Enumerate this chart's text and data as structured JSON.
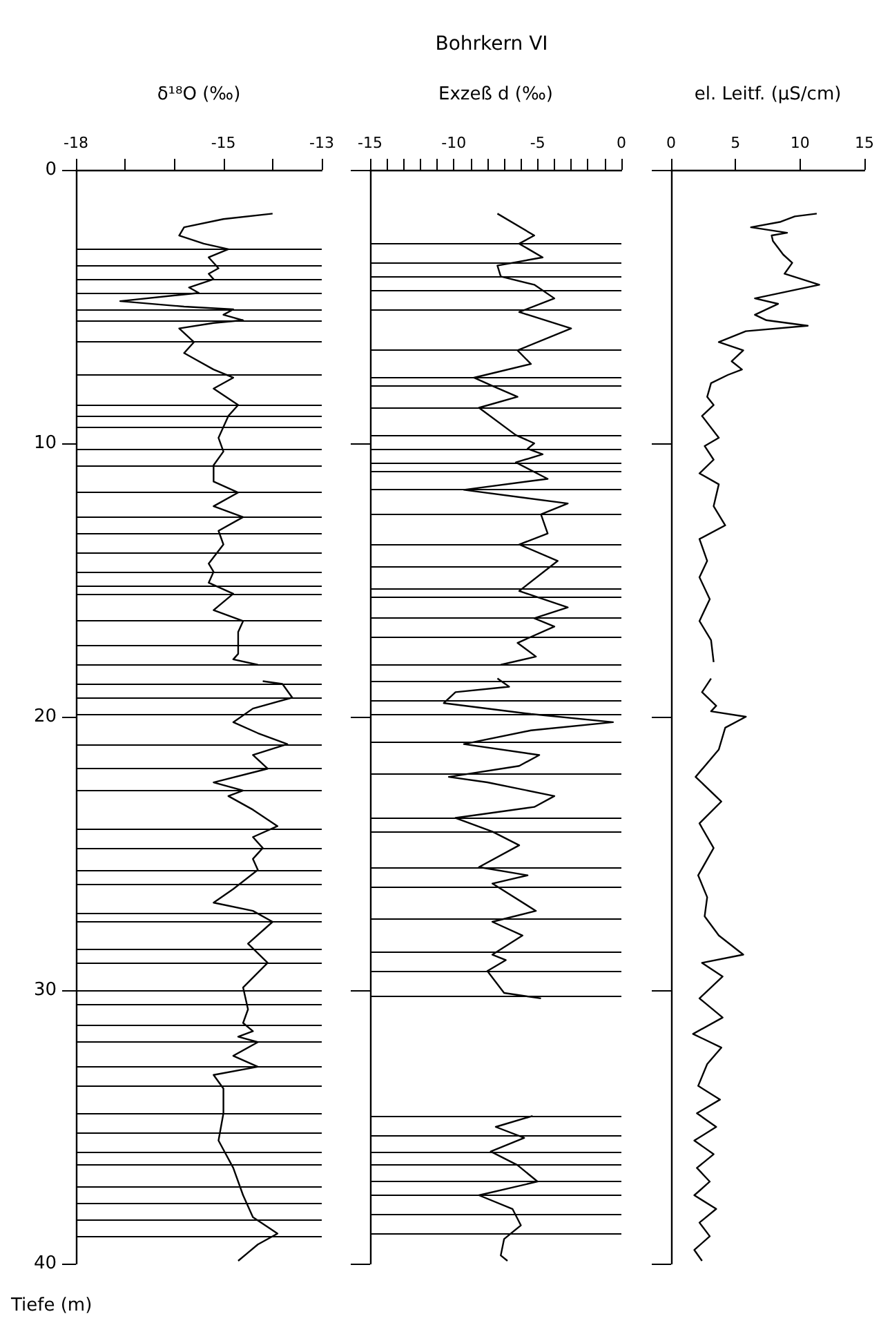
{
  "chart_data": [
    {
      "type": "line",
      "xlabel": "δ¹⁸O (‰)",
      "ylabel": "Tiefe (m)",
      "xlim": [
        -18,
        -13
      ],
      "xticks": [
        -18,
        {
          "value": -17,
          "label": null
        },
        {
          "value": -16,
          "label": null
        },
        -15,
        {
          "value": -14,
          "label": null
        },
        -13
      ],
      "ylim": [
        40,
        0
      ],
      "yticks": [
        0,
        10,
        20,
        30,
        40
      ],
      "series": [
        {
          "color": "#000000",
          "x": [
            -14.0,
            -15.0,
            -15.8,
            -15.9,
            -15.4,
            -14.9,
            -15.3,
            -15.1,
            -15.3,
            -15.2,
            -15.7,
            -15.5,
            -17.1,
            -15.8,
            -14.8,
            -15.0,
            -14.6,
            -15.2,
            -15.9,
            -15.6,
            -15.8,
            -15.6,
            -15.2,
            -14.8,
            -15.2,
            -14.7,
            -14.9,
            -15.0,
            -15.1,
            -15.0,
            -15.2,
            -15.2,
            -14.7,
            -15.2,
            -14.6,
            -15.1,
            -15.0,
            -15.3,
            -15.2,
            -15.3,
            -14.8,
            -15.2,
            -14.6,
            -14.7,
            -14.7,
            -14.8,
            -14.3
          ],
          "values": [
            1.6,
            1.8,
            2.1,
            2.4,
            2.7,
            2.9,
            3.2,
            3.6,
            3.8,
            4.0,
            4.3,
            4.5,
            4.8,
            5.0,
            5.1,
            5.3,
            5.5,
            5.6,
            5.8,
            6.3,
            6.7,
            6.9,
            7.3,
            7.6,
            8.0,
            8.6,
            9.0,
            9.4,
            9.8,
            10.3,
            10.8,
            11.4,
            11.8,
            12.3,
            12.7,
            13.2,
            13.7,
            14.4,
            14.7,
            15.1,
            15.5,
            16.1,
            16.5,
            16.9,
            17.7,
            17.9,
            18.1
          ]
        },
        {
          "color": "#000000",
          "x": [
            -14.2,
            -13.8,
            -13.6,
            -14.4,
            -14.8,
            -14.3,
            -13.7,
            -14.4,
            -14.1,
            -15.2,
            -14.6,
            -14.9,
            -14.4,
            -13.9,
            -14.4,
            -14.2,
            -14.4,
            -14.3,
            -14.8,
            -15.2,
            -14.4,
            -14.0,
            -14.5,
            -14.1,
            -14.6,
            -14.5,
            -14.6,
            -14.4,
            -14.7,
            -14.3,
            -14.8,
            -14.3,
            -15.2,
            -15.0,
            -15.0,
            -15.1,
            -14.8,
            -14.6,
            -14.4,
            -13.9,
            -14.3,
            -14.5,
            -14.7
          ],
          "values": [
            18.7,
            18.8,
            19.3,
            19.7,
            20.2,
            20.6,
            21.0,
            21.4,
            21.9,
            22.4,
            22.7,
            22.9,
            23.4,
            24.0,
            24.4,
            24.8,
            25.2,
            25.6,
            26.3,
            26.8,
            27.1,
            27.5,
            28.3,
            29.0,
            29.9,
            30.7,
            31.2,
            31.5,
            31.7,
            31.9,
            32.4,
            32.8,
            33.1,
            33.6,
            34.5,
            35.5,
            36.5,
            37.5,
            38.3,
            38.9,
            39.3,
            39.6,
            39.9
          ]
        }
      ],
      "ref_lines": [
        {
          "axis": "y",
          "value": 2.9
        },
        {
          "axis": "y",
          "value": 3.5
        },
        {
          "axis": "y",
          "value": 4.0
        },
        {
          "axis": "y",
          "value": 4.5
        },
        {
          "axis": "y",
          "value": 5.1
        },
        {
          "axis": "y",
          "value": 5.5
        },
        {
          "axis": "y",
          "value": 6.3
        },
        {
          "axis": "y",
          "value": 7.5
        },
        {
          "axis": "y",
          "value": 8.6
        },
        {
          "axis": "y",
          "value": 9.0
        },
        {
          "axis": "y",
          "value": 9.4
        },
        {
          "axis": "y",
          "value": 10.2
        },
        {
          "axis": "y",
          "value": 10.8
        },
        {
          "axis": "y",
          "value": 11.8
        },
        {
          "axis": "y",
          "value": 12.7
        },
        {
          "axis": "y",
          "value": 13.3
        },
        {
          "axis": "y",
          "value": 14.0
        },
        {
          "axis": "y",
          "value": 14.7
        },
        {
          "axis": "y",
          "value": 15.2
        },
        {
          "axis": "y",
          "value": 15.5
        },
        {
          "axis": "y",
          "value": 16.5
        },
        {
          "axis": "y",
          "value": 17.4
        },
        {
          "axis": "y",
          "value": 18.1
        },
        {
          "axis": "y",
          "value": 18.8
        },
        {
          "axis": "y",
          "value": 19.3
        },
        {
          "axis": "y",
          "value": 19.9
        },
        {
          "axis": "y",
          "value": 21.0
        },
        {
          "axis": "y",
          "value": 21.9
        },
        {
          "axis": "y",
          "value": 22.7
        },
        {
          "axis": "y",
          "value": 24.1
        },
        {
          "axis": "y",
          "value": 24.8
        },
        {
          "axis": "y",
          "value": 25.6
        },
        {
          "axis": "y",
          "value": 26.1
        },
        {
          "axis": "y",
          "value": 27.2
        },
        {
          "axis": "y",
          "value": 27.5
        },
        {
          "axis": "y",
          "value": 28.5
        },
        {
          "axis": "y",
          "value": 29.0
        },
        {
          "axis": "y",
          "value": 30.0
        },
        {
          "axis": "y",
          "value": 30.5
        },
        {
          "axis": "y",
          "value": 31.3
        },
        {
          "axis": "y",
          "value": 31.9
        },
        {
          "axis": "y",
          "value": 32.8
        },
        {
          "axis": "y",
          "value": 33.5
        },
        {
          "axis": "y",
          "value": 34.5
        },
        {
          "axis": "y",
          "value": 35.2
        },
        {
          "axis": "y",
          "value": 35.9
        },
        {
          "axis": "y",
          "value": 36.4
        },
        {
          "axis": "y",
          "value": 37.2
        },
        {
          "axis": "y",
          "value": 37.8
        },
        {
          "axis": "y",
          "value": 38.4
        },
        {
          "axis": "y",
          "value": 39.0
        }
      ]
    },
    {
      "type": "line",
      "title": "Bohrkern VI",
      "xlabel": "Exzeß d (‰)",
      "xlim": [
        -15,
        0
      ],
      "xticks": [
        -15,
        {
          "value": -14,
          "label": null
        },
        {
          "value": -13,
          "label": null
        },
        {
          "value": -12,
          "label": null
        },
        {
          "value": -11,
          "label": null
        },
        -10,
        {
          "value": -9,
          "label": null
        },
        {
          "value": -8,
          "label": null
        },
        {
          "value": -7,
          "label": null
        },
        {
          "value": -6,
          "label": null
        },
        -5,
        {
          "value": -4,
          "label": null
        },
        {
          "value": -3,
          "label": null
        },
        {
          "value": -2,
          "label": null
        },
        {
          "value": -1,
          "label": null
        },
        0
      ],
      "ylim": [
        40,
        0
      ],
      "yticks": [
        0,
        10,
        20,
        30,
        40
      ],
      "tick_labels": "x",
      "series": [
        {
          "color": "#000000",
          "x": [
            -7.4,
            -5.2,
            -6.1,
            -4.7,
            -7.4,
            -7.2,
            -5.2,
            -4.0,
            -6.1,
            -3.0,
            -6.2,
            -5.4,
            -8.8,
            -7.7,
            -6.2,
            -8.5,
            -6.3,
            -5.2,
            -5.6,
            -4.7,
            -6.3,
            -4.4,
            -9.4,
            -3.2,
            -4.8,
            -4.4,
            -6.1,
            -3.8,
            -6.1,
            -3.2,
            -5.2,
            -4.0,
            -6.2,
            -5.1,
            -7.2
          ],
          "values": [
            1.6,
            2.4,
            2.7,
            3.2,
            3.5,
            3.9,
            4.2,
            4.7,
            5.2,
            5.8,
            6.6,
            7.1,
            7.6,
            7.9,
            8.3,
            8.7,
            9.7,
            10.0,
            10.2,
            10.4,
            10.7,
            11.3,
            11.7,
            12.2,
            12.6,
            13.3,
            13.7,
            14.3,
            15.4,
            16.0,
            16.4,
            16.7,
            17.3,
            17.8,
            18.1
          ]
        },
        {
          "color": "#000000",
          "x": [
            -7.4,
            -6.7,
            -9.9,
            -10.6,
            -5.4,
            -0.5,
            -5.4,
            -9.4,
            -4.9,
            -6.1,
            -10.3,
            -8.0,
            -4.0,
            -5.2,
            -9.9,
            -7.7,
            -6.1,
            -8.5,
            -5.6,
            -7.7,
            -5.1,
            -7.7,
            -5.9,
            -7.7,
            -6.9,
            -8.0,
            -7.0,
            -4.8
          ],
          "values": [
            18.6,
            18.9,
            19.1,
            19.5,
            19.9,
            20.2,
            20.5,
            21.0,
            21.4,
            21.8,
            22.2,
            22.4,
            22.9,
            23.3,
            23.7,
            24.2,
            24.7,
            25.5,
            25.8,
            26.1,
            27.1,
            27.5,
            28.0,
            28.7,
            28.9,
            29.3,
            30.1,
            30.3
          ]
        },
        {
          "color": "#000000",
          "x": [
            -5.3,
            -7.5,
            -5.8,
            -7.8,
            -6.2,
            -5.0,
            -8.5,
            -6.5,
            -6.0,
            -7.0,
            -7.2,
            -6.8
          ],
          "values": [
            34.6,
            35.0,
            35.4,
            35.9,
            36.4,
            37.0,
            37.5,
            38.0,
            38.6,
            39.1,
            39.7,
            39.9
          ]
        }
      ],
      "ref_lines": [
        {
          "axis": "y",
          "value": 2.7
        },
        {
          "axis": "y",
          "value": 3.4
        },
        {
          "axis": "y",
          "value": 3.9
        },
        {
          "axis": "y",
          "value": 4.4
        },
        {
          "axis": "y",
          "value": 5.1
        },
        {
          "axis": "y",
          "value": 6.6
        },
        {
          "axis": "y",
          "value": 7.6
        },
        {
          "axis": "y",
          "value": 7.9
        },
        {
          "axis": "y",
          "value": 8.7
        },
        {
          "axis": "y",
          "value": 9.7
        },
        {
          "axis": "y",
          "value": 10.2
        },
        {
          "axis": "y",
          "value": 10.7
        },
        {
          "axis": "y",
          "value": 11.0
        },
        {
          "axis": "y",
          "value": 11.7
        },
        {
          "axis": "y",
          "value": 12.6
        },
        {
          "axis": "y",
          "value": 13.7
        },
        {
          "axis": "y",
          "value": 14.5
        },
        {
          "axis": "y",
          "value": 15.3
        },
        {
          "axis": "y",
          "value": 15.6
        },
        {
          "axis": "y",
          "value": 16.4
        },
        {
          "axis": "y",
          "value": 17.1
        },
        {
          "axis": "y",
          "value": 18.1
        },
        {
          "axis": "y",
          "value": 18.7
        },
        {
          "axis": "y",
          "value": 19.4
        },
        {
          "axis": "y",
          "value": 19.9
        },
        {
          "axis": "y",
          "value": 20.9
        },
        {
          "axis": "y",
          "value": 22.1
        },
        {
          "axis": "y",
          "value": 23.7
        },
        {
          "axis": "y",
          "value": 24.2
        },
        {
          "axis": "y",
          "value": 25.5
        },
        {
          "axis": "y",
          "value": 26.2
        },
        {
          "axis": "y",
          "value": 27.4
        },
        {
          "axis": "y",
          "value": 28.6
        },
        {
          "axis": "y",
          "value": 29.3
        },
        {
          "axis": "y",
          "value": 30.2
        },
        {
          "axis": "y",
          "value": 34.6
        },
        {
          "axis": "y",
          "value": 35.3
        },
        {
          "axis": "y",
          "value": 35.9
        },
        {
          "axis": "y",
          "value": 36.4
        },
        {
          "axis": "y",
          "value": 37.0
        },
        {
          "axis": "y",
          "value": 37.5
        },
        {
          "axis": "y",
          "value": 38.2
        },
        {
          "axis": "y",
          "value": 38.9
        }
      ]
    },
    {
      "type": "line",
      "xlabel": "el. Leitf. (µS/cm)",
      "xlim": [
        0,
        15
      ],
      "xticks": [
        0,
        5,
        10,
        15
      ],
      "ylim": [
        40,
        0
      ],
      "yticks": [
        0,
        10,
        20,
        30,
        40
      ],
      "tick_labels": "x",
      "series": [
        {
          "color": "#000000",
          "x": [
            11.3,
            9.6,
            8.5,
            6.2,
            9.0,
            7.8,
            7.9,
            8.7,
            9.4,
            8.8,
            11.5,
            6.5,
            8.3,
            6.5,
            7.4,
            10.6,
            5.8,
            3.7,
            5.6,
            4.7,
            5.5,
            4.4,
            3.1,
            2.8,
            3.3,
            2.4,
            3.7,
            2.6,
            3.3,
            2.2,
            3.7,
            3.3,
            4.2,
            2.2,
            2.8,
            2.2,
            3.0,
            2.2,
            3.1,
            3.3
          ],
          "values": [
            1.6,
            1.7,
            1.9,
            2.1,
            2.3,
            2.4,
            2.6,
            3.1,
            3.4,
            3.8,
            4.2,
            4.7,
            4.9,
            5.3,
            5.5,
            5.7,
            5.9,
            6.3,
            6.6,
            7.0,
            7.3,
            7.5,
            7.8,
            8.3,
            8.6,
            9.0,
            9.8,
            10.1,
            10.6,
            11.1,
            11.5,
            12.3,
            13.0,
            13.5,
            14.3,
            14.9,
            15.7,
            16.5,
            17.2,
            18.0
          ]
        },
        {
          "color": "#000000",
          "x": [
            3.1,
            2.4,
            3.5,
            3.1,
            5.8,
            4.2,
            3.7,
            1.9,
            3.9,
            2.2,
            3.3,
            2.1,
            2.8,
            2.6,
            3.7,
            5.6,
            2.4,
            4.0,
            2.2,
            4.0,
            1.7,
            3.9,
            2.8,
            2.1,
            3.8,
            2.0,
            3.5,
            1.8,
            3.3,
            2.0,
            3.0,
            1.8,
            3.5,
            2.2,
            3.0,
            1.8,
            2.4
          ],
          "values": [
            18.6,
            19.1,
            19.6,
            19.8,
            20.0,
            20.4,
            21.2,
            22.2,
            23.1,
            23.9,
            24.8,
            25.8,
            26.6,
            27.3,
            28.0,
            28.7,
            29.0,
            29.5,
            30.3,
            31.0,
            31.6,
            32.1,
            32.7,
            33.5,
            34.0,
            34.5,
            35.0,
            35.5,
            36.0,
            36.5,
            37.0,
            37.5,
            38.0,
            38.5,
            39.0,
            39.5,
            39.9
          ]
        }
      ]
    }
  ]
}
